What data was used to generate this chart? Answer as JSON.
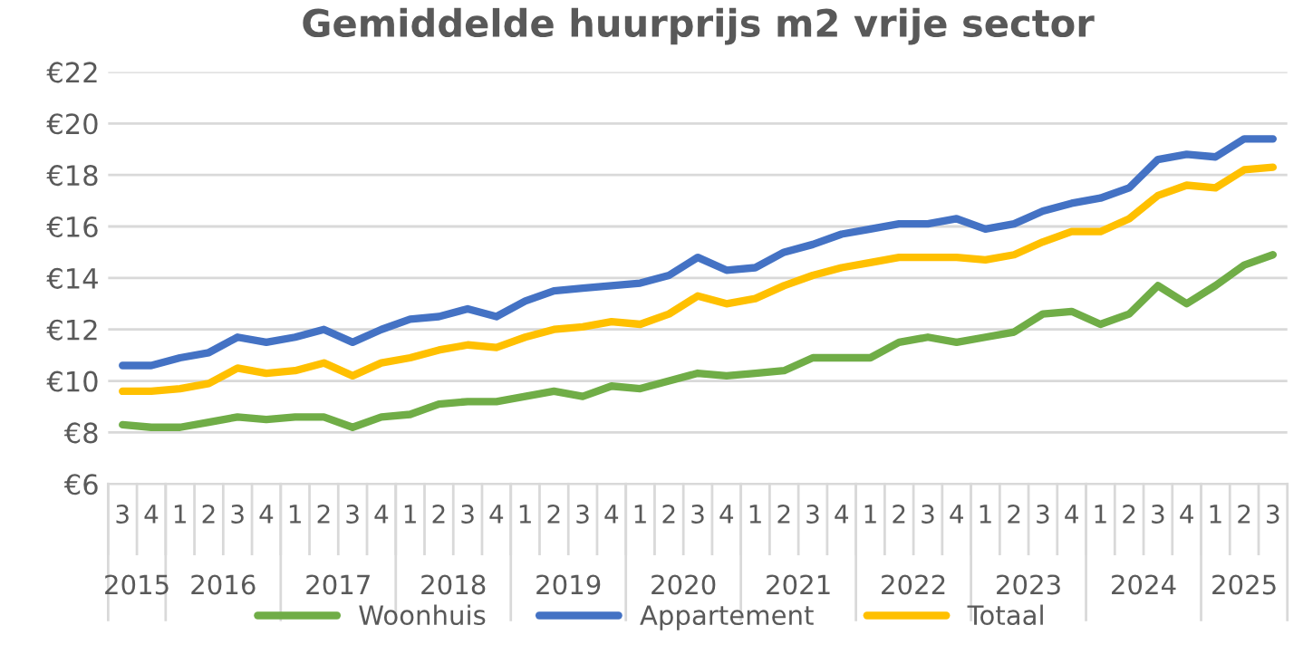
{
  "chart_data": {
    "type": "line",
    "title": "Gemiddelde huurprijs m2 vrije sector",
    "categories": [
      "3",
      "4",
      "1",
      "2",
      "3",
      "4",
      "1",
      "2",
      "3",
      "4",
      "1",
      "2",
      "3",
      "4",
      "1",
      "2",
      "3",
      "4",
      "1",
      "2",
      "3",
      "4",
      "1",
      "2",
      "3",
      "4",
      "1",
      "2",
      "3",
      "4",
      "1",
      "2",
      "3",
      "4",
      "1",
      "2",
      "3",
      "4",
      "1",
      "2",
      "3"
    ],
    "annotations": [
      "2015",
      "2016",
      "2017",
      "2018",
      "2019",
      "2020",
      "2021",
      "2022",
      "2023",
      "2024",
      "2025"
    ],
    "series": [
      {
        "name": "Woonhuis",
        "color": "#70ad47",
        "values": [
          8.3,
          8.2,
          8.2,
          8.4,
          8.6,
          8.5,
          8.6,
          8.6,
          8.2,
          8.6,
          8.7,
          9.1,
          9.2,
          9.2,
          9.4,
          9.6,
          9.4,
          9.8,
          9.7,
          10.0,
          10.3,
          10.2,
          10.3,
          10.4,
          10.9,
          10.9,
          10.9,
          11.5,
          11.7,
          11.5,
          11.7,
          11.9,
          12.6,
          12.7,
          12.2,
          12.6,
          13.7,
          13.0,
          13.7,
          14.5,
          14.9
        ]
      },
      {
        "name": "Appartement",
        "color": "#4472c4",
        "values": [
          10.6,
          10.6,
          10.9,
          11.1,
          11.7,
          11.5,
          11.7,
          12.0,
          11.5,
          12.0,
          12.4,
          12.5,
          12.8,
          12.5,
          13.1,
          13.5,
          13.6,
          13.7,
          13.8,
          14.1,
          14.8,
          14.3,
          14.4,
          15.0,
          15.3,
          15.7,
          15.9,
          16.1,
          16.1,
          16.3,
          15.9,
          16.1,
          16.6,
          16.9,
          17.1,
          17.5,
          18.6,
          18.8,
          18.7,
          19.4,
          19.4
        ]
      },
      {
        "name": "Totaal",
        "color": "#ffc000",
        "values": [
          9.6,
          9.6,
          9.7,
          9.9,
          10.5,
          10.3,
          10.4,
          10.7,
          10.2,
          10.7,
          10.9,
          11.2,
          11.4,
          11.3,
          11.7,
          12.0,
          12.1,
          12.3,
          12.2,
          12.6,
          13.3,
          13.0,
          13.2,
          13.7,
          14.1,
          14.4,
          14.6,
          14.8,
          14.8,
          14.8,
          14.7,
          14.9,
          15.4,
          15.8,
          15.8,
          16.3,
          17.2,
          17.6,
          17.5,
          18.2,
          18.3
        ]
      }
    ],
    "ylim": [
      6,
      22
    ],
    "yticks": [
      {
        "value": 6,
        "label": "€6"
      },
      {
        "value": 8,
        "label": "€8"
      },
      {
        "value": 10,
        "label": "€10"
      },
      {
        "value": 12,
        "label": "€12"
      },
      {
        "value": 14,
        "label": "€14"
      },
      {
        "value": 16,
        "label": "€16"
      },
      {
        "value": 18,
        "label": "€18"
      },
      {
        "value": 20,
        "label": "€20"
      },
      {
        "value": 22,
        "label": "€22"
      }
    ],
    "grid": "y",
    "legend": "bottom",
    "marker": "none",
    "line_style": "solid"
  }
}
